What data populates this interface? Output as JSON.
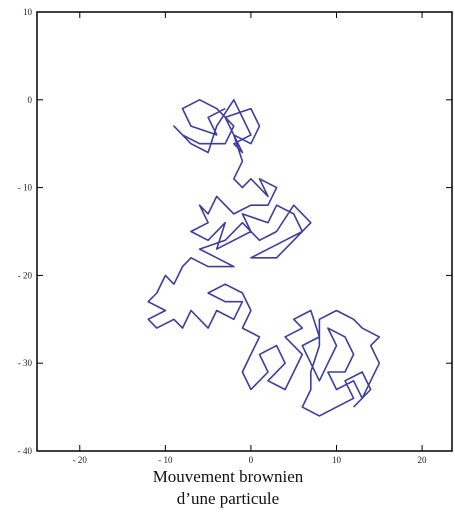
{
  "chart_data": {
    "type": "line",
    "title": [
      "Mouvement brownien",
      "d’une particule"
    ],
    "color": "#3b3e9e",
    "xlim": [
      -25,
      23.5
    ],
    "ylim": [
      -40,
      10
    ],
    "xticks": [
      {
        "value": -20,
        "label": "- 20"
      },
      {
        "value": -10,
        "label": "- 10"
      },
      0,
      10,
      20
    ],
    "yticks": [
      10,
      0,
      {
        "value": -10,
        "label": "- 10"
      },
      {
        "value": -20,
        "label": "- 20"
      },
      {
        "value": -30,
        "label": "- 30"
      },
      {
        "value": -40,
        "label": "- 40"
      }
    ],
    "x": [
      -3,
      -5,
      -4,
      -7,
      -8,
      -6,
      -4,
      -2,
      -3,
      -6,
      -8,
      -9,
      -7,
      -5,
      -4,
      -2,
      -1,
      0,
      -2,
      -1,
      -3,
      0,
      1,
      0,
      -2,
      -1,
      -2,
      -1,
      0,
      2,
      1,
      3,
      2,
      0,
      -2,
      -4,
      -5,
      -6,
      -5,
      -7,
      -5,
      -3,
      -4,
      -2,
      0,
      -1,
      2,
      3,
      5,
      6,
      4,
      2,
      0,
      3,
      5,
      7,
      5,
      3,
      1,
      -1,
      -3,
      -6,
      -4,
      -2,
      -5,
      -7,
      -8,
      -9,
      -10,
      -11,
      -12,
      -10,
      -12,
      -11,
      -9,
      -8,
      -7,
      -6,
      -5,
      -4,
      -2,
      -1,
      -3,
      -5,
      -3,
      -1,
      0,
      -1,
      1,
      0,
      -1,
      0,
      2,
      1,
      3,
      4,
      2,
      4,
      5,
      6,
      4,
      6,
      5,
      7,
      8,
      6,
      7,
      8,
      9,
      10,
      9,
      11,
      12,
      11,
      9,
      10,
      12,
      13,
      14,
      15,
      14,
      15,
      13,
      12,
      10,
      8,
      8,
      7,
      7,
      6,
      8,
      10,
      12,
      11,
      13,
      14,
      12
    ],
    "y": [
      -1,
      -2,
      -4,
      -3,
      -1,
      0,
      -1,
      -3,
      -5,
      -5,
      -4,
      -3,
      -5,
      -6,
      -3,
      0,
      -2,
      -4,
      -5,
      -6,
      -2,
      -1,
      -3,
      -5,
      -4,
      -7,
      -9,
      -10,
      -9,
      -11,
      -9,
      -10,
      -12,
      -12,
      -13,
      -11,
      -13,
      -12,
      -14,
      -15,
      -16,
      -14,
      -17,
      -16,
      -15,
      -13,
      -14,
      -12,
      -13,
      -15,
      -16,
      -17,
      -18,
      -18,
      -16,
      -14,
      -12,
      -15,
      -16,
      -14,
      -16,
      -17,
      -18,
      -19,
      -19,
      -18,
      -19,
      -21,
      -20,
      -22,
      -23,
      -24,
      -25,
      -26,
      -25,
      -26,
      -24,
      -25,
      -26,
      -24,
      -25,
      -23,
      -23,
      -22,
      -21,
      -22,
      -24,
      -26,
      -27,
      -29,
      -31,
      -33,
      -31,
      -29,
      -28,
      -30,
      -32,
      -33,
      -31,
      -29,
      -27,
      -26,
      -25,
      -24,
      -27,
      -28,
      -30,
      -32,
      -30,
      -28,
      -26,
      -27,
      -29,
      -31,
      -31,
      -33,
      -32,
      -34,
      -32,
      -30,
      -28,
      -27,
      -26,
      -25,
      -24,
      -25,
      -28,
      -31,
      -33,
      -35,
      -36,
      -35,
      -34,
      -32,
      -31,
      -33,
      -35
    ]
  }
}
